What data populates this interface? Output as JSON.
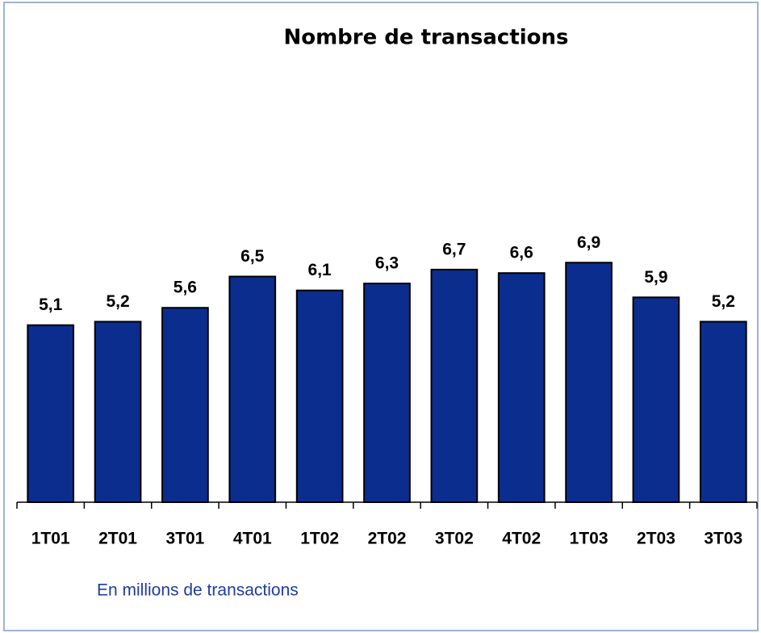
{
  "chart_data": {
    "type": "bar",
    "title": "Nombre de transactions",
    "categories": [
      "1T01",
      "2T01",
      "3T01",
      "4T01",
      "1T02",
      "2T02",
      "3T02",
      "4T02",
      "1T03",
      "2T03",
      "3T03"
    ],
    "values": [
      5.1,
      5.2,
      5.6,
      6.5,
      6.1,
      6.3,
      6.7,
      6.6,
      6.9,
      5.9,
      5.2
    ],
    "value_labels": [
      "5,1",
      "5,2",
      "5,6",
      "6,5",
      "6,1",
      "6,3",
      "6,7",
      "6,6",
      "6,9",
      "5,9",
      "5,2"
    ],
    "color": "#0b2d8e",
    "ylim": [
      0,
      10
    ],
    "grid": false,
    "note": "En millions de transactions"
  }
}
